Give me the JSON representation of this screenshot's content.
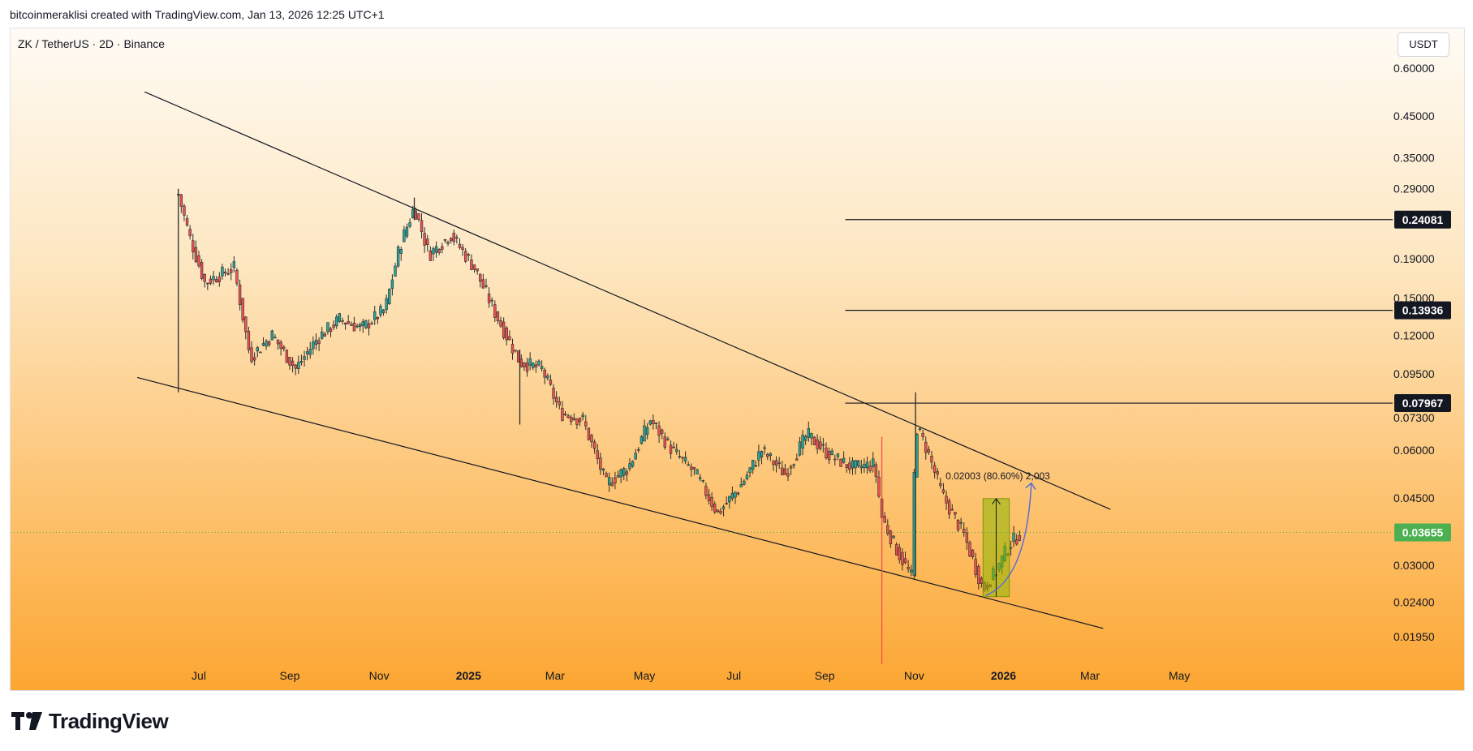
{
  "header": {
    "credit": "bitcoinmeraklisi created with TradingView.com, Jan 13, 2026 12:25 UTC+1"
  },
  "symbol": {
    "title": "ZK / TetherUS · 2D · Binance"
  },
  "currency": {
    "label": "USDT"
  },
  "footer": {
    "brand": "TradingView",
    "logo_icon": "tradingview-logo-icon"
  },
  "colors": {
    "up": "#26a69a",
    "down": "#ef5350",
    "candle": "#2b2b2b",
    "line": "#131722",
    "current_price": "#4caf50",
    "projection": "#5b6fd6",
    "measure_fill": "#8db600"
  },
  "chart_data": {
    "type": "candlestick",
    "title": "ZK / TetherUS · 2D · Binance",
    "scale": "log",
    "yaxis_ticks": [
      "0.60000",
      "0.45000",
      "0.35000",
      "0.29000",
      "0.19000",
      "0.15000",
      "0.12000",
      "0.09500",
      "0.07300",
      "0.06000",
      "0.04500",
      "0.03000",
      "0.02400",
      "0.01950"
    ],
    "xaxis_ticks": [
      {
        "label": "Jul",
        "date": "2024-07-01"
      },
      {
        "label": "Sep",
        "date": "2024-09-01"
      },
      {
        "label": "Nov",
        "date": "2024-11-01"
      },
      {
        "label": "2025",
        "date": "2025-01-01",
        "bold": true
      },
      {
        "label": "Mar",
        "date": "2025-03-01"
      },
      {
        "label": "May",
        "date": "2025-05-01"
      },
      {
        "label": "Jul",
        "date": "2025-07-01"
      },
      {
        "label": "Sep",
        "date": "2025-09-01"
      },
      {
        "label": "Nov",
        "date": "2025-11-01"
      },
      {
        "label": "2026",
        "date": "2026-01-01",
        "bold": true
      },
      {
        "label": "Mar",
        "date": "2026-03-01"
      },
      {
        "label": "May",
        "date": "2026-05-01"
      }
    ],
    "price_path": [
      {
        "date": "2024-06-17",
        "price": 0.28
      },
      {
        "date": "2024-06-25",
        "price": 0.215
      },
      {
        "date": "2024-07-05",
        "price": 0.165
      },
      {
        "date": "2024-07-25",
        "price": 0.18
      },
      {
        "date": "2024-08-05",
        "price": 0.105
      },
      {
        "date": "2024-08-20",
        "price": 0.12
      },
      {
        "date": "2024-09-05",
        "price": 0.098
      },
      {
        "date": "2024-09-20",
        "price": 0.118
      },
      {
        "date": "2024-10-05",
        "price": 0.132
      },
      {
        "date": "2024-10-20",
        "price": 0.125
      },
      {
        "date": "2024-11-05",
        "price": 0.14
      },
      {
        "date": "2024-11-15",
        "price": 0.205
      },
      {
        "date": "2024-11-25",
        "price": 0.26
      },
      {
        "date": "2024-12-05",
        "price": 0.195
      },
      {
        "date": "2024-12-20",
        "price": 0.22
      },
      {
        "date": "2025-01-05",
        "price": 0.18
      },
      {
        "date": "2025-01-20",
        "price": 0.135
      },
      {
        "date": "2025-02-05",
        "price": 0.102
      },
      {
        "date": "2025-02-20",
        "price": 0.098
      },
      {
        "date": "2025-03-05",
        "price": 0.075
      },
      {
        "date": "2025-03-20",
        "price": 0.072
      },
      {
        "date": "2025-04-05",
        "price": 0.049
      },
      {
        "date": "2025-04-20",
        "price": 0.054
      },
      {
        "date": "2025-05-05",
        "price": 0.072
      },
      {
        "date": "2025-05-20",
        "price": 0.06
      },
      {
        "date": "2025-06-05",
        "price": 0.052
      },
      {
        "date": "2025-06-20",
        "price": 0.041
      },
      {
        "date": "2025-07-05",
        "price": 0.048
      },
      {
        "date": "2025-07-20",
        "price": 0.06
      },
      {
        "date": "2025-08-05",
        "price": 0.052
      },
      {
        "date": "2025-08-20",
        "price": 0.066
      },
      {
        "date": "2025-09-05",
        "price": 0.058
      },
      {
        "date": "2025-09-20",
        "price": 0.054
      },
      {
        "date": "2025-10-05",
        "price": 0.055
      },
      {
        "date": "2025-10-10",
        "price": 0.04
      },
      {
        "date": "2025-10-20",
        "price": 0.033
      },
      {
        "date": "2025-10-30",
        "price": 0.028
      },
      {
        "date": "2025-11-02",
        "price": 0.07
      },
      {
        "date": "2025-11-10",
        "price": 0.06
      },
      {
        "date": "2025-11-20",
        "price": 0.046
      },
      {
        "date": "2025-12-05",
        "price": 0.036
      },
      {
        "date": "2025-12-18",
        "price": 0.026
      },
      {
        "date": "2025-12-26",
        "price": 0.0285
      },
      {
        "date": "2026-01-05",
        "price": 0.034
      },
      {
        "date": "2026-01-13",
        "price": 0.03655
      }
    ],
    "wicks": [
      {
        "date": "2024-06-17",
        "high": 0.29,
        "low": 0.085
      },
      {
        "date": "2024-11-25",
        "high": 0.275,
        "low": 0.24
      },
      {
        "date": "2025-02-05",
        "high": 0.11,
        "low": 0.07
      },
      {
        "date": "2025-10-10",
        "high": 0.065,
        "low": 0.0165
      },
      {
        "date": "2025-11-02",
        "high": 0.085,
        "low": 0.028
      }
    ],
    "trendlines": [
      {
        "name": "upper",
        "from": {
          "date": "2024-05-25",
          "price": 0.52
        },
        "to": {
          "date": "2026-03-15",
          "price": 0.042
        }
      },
      {
        "name": "lower",
        "from": {
          "date": "2024-05-20",
          "price": 0.093
        },
        "to": {
          "date": "2026-03-10",
          "price": 0.0205
        }
      }
    ],
    "levels": [
      {
        "price": 0.24081,
        "label": "0.24081",
        "from_date": "2025-09-15"
      },
      {
        "price": 0.13936,
        "label": "0.13936",
        "from_date": "2025-09-15"
      },
      {
        "price": 0.07967,
        "label": "0.07967",
        "from_date": "2025-09-15"
      }
    ],
    "current_price": {
      "price": 0.03655,
      "label": "0.03655"
    },
    "measure": {
      "from": {
        "date": "2025-12-18",
        "price": 0.0248
      },
      "to": {
        "date": "2026-01-05",
        "price": 0.0448
      },
      "label": "0.02003 (80.60%) 2,003"
    },
    "projection": {
      "from": {
        "date": "2025-12-20",
        "price": 0.025
      },
      "to": {
        "date": "2026-01-20",
        "price": 0.0492
      }
    }
  }
}
